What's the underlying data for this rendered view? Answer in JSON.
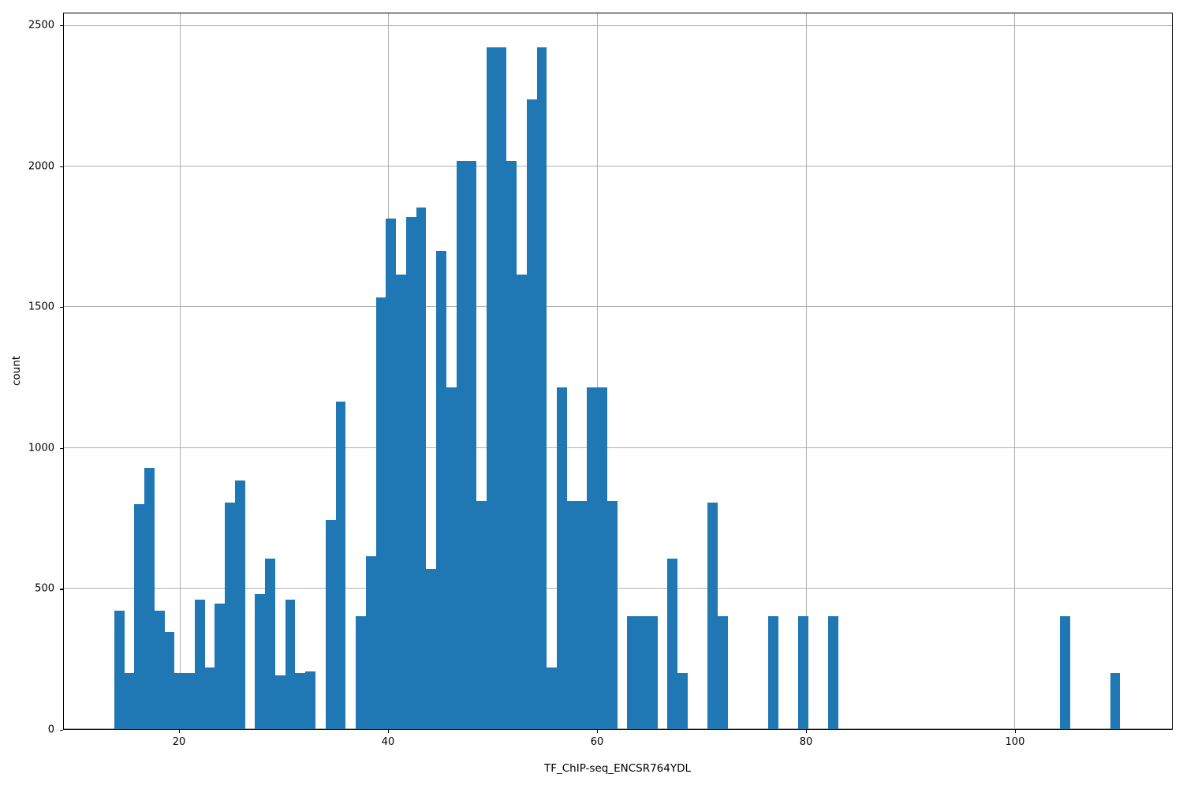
{
  "figure": {
    "background_color": "#ffffff",
    "bar_color": "#1f77b4",
    "grid_color": "#b0b0b0",
    "spine_color": "#000000",
    "text_color": "#000000"
  },
  "chart_data": {
    "type": "bar",
    "subtype": "histogram",
    "title": "",
    "xlabel": "TF_ChIP-seq_ENCSR764YDL",
    "ylabel": "count",
    "grid": true,
    "legend_position": "none",
    "xlim": [
      8.9,
      115.1
    ],
    "ylim": [
      0,
      2545
    ],
    "xticks": [
      20,
      40,
      60,
      80,
      100
    ],
    "yticks": [
      0,
      500,
      1000,
      1500,
      2000,
      2500
    ],
    "bin_start": 13.73,
    "bin_width": 0.9641,
    "counts": [
      420,
      200,
      800,
      930,
      420,
      345,
      200,
      200,
      460,
      220,
      445,
      805,
      885,
      0,
      480,
      605,
      190,
      460,
      200,
      205,
      0,
      745,
      1165,
      0,
      400,
      615,
      1535,
      1815,
      1615,
      1820,
      1855,
      570,
      1700,
      1215,
      2020,
      2020,
      810,
      2425,
      2425,
      2020,
      1615,
      2240,
      2425,
      220,
      1215,
      810,
      810,
      1215,
      1215,
      810,
      0,
      400,
      400,
      400,
      0,
      605,
      200,
      0,
      0,
      805,
      400,
      0,
      0,
      0,
      0,
      400,
      0,
      0,
      400,
      0,
      0,
      400,
      0,
      0,
      0,
      0,
      0,
      0,
      0,
      0,
      0,
      0,
      0,
      0,
      0,
      0,
      0,
      0,
      0,
      0,
      0,
      0,
      0,
      0,
      400,
      0,
      0,
      0,
      0,
      200
    ]
  }
}
